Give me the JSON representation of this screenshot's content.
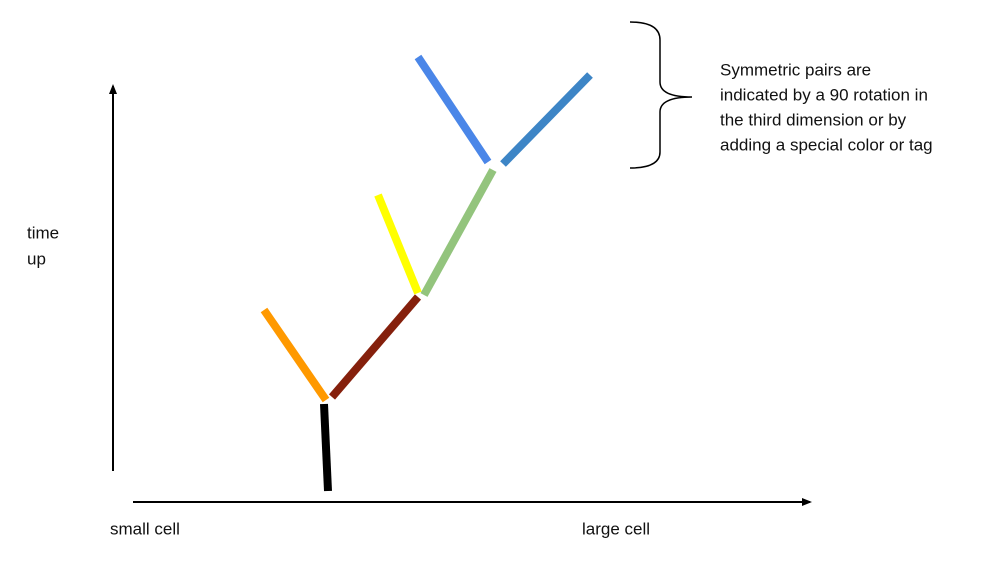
{
  "y_axis": {
    "label_lines": [
      "time",
      "up"
    ]
  },
  "x_axis": {
    "left_label": "small cell",
    "right_label": "large cell"
  },
  "annotation": {
    "lines": [
      "Symmetric pairs are",
      "indicated by a 90 rotation in",
      "the third dimension or by",
      "adding a special color or tag"
    ]
  }
}
